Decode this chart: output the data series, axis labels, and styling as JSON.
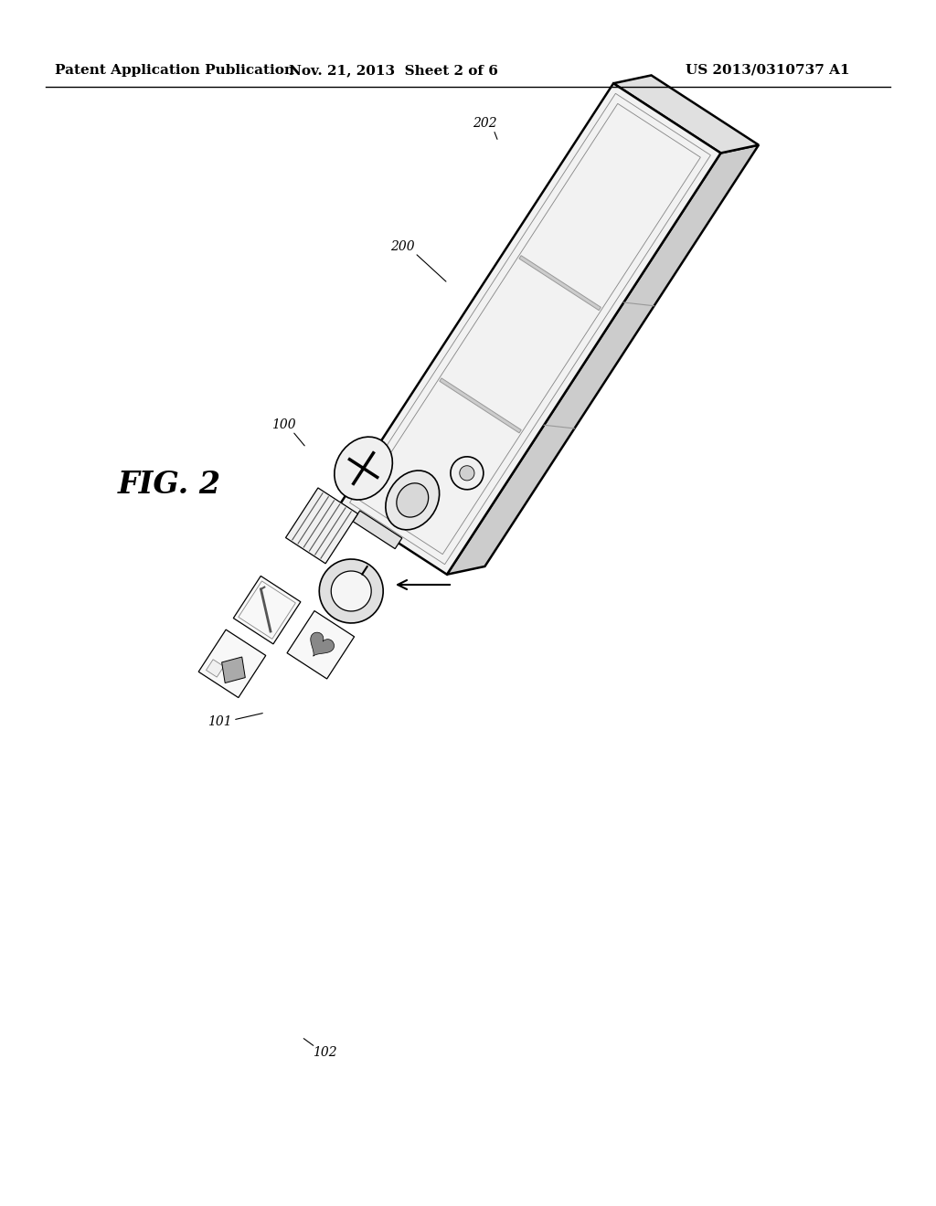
{
  "background_color": "#ffffff",
  "header_left": "Patent Application Publication",
  "header_center": "Nov. 21, 2013  Sheet 2 of 6",
  "header_right": "US 2013/0310737 A1",
  "header_fontsize": 11,
  "fig_label": "FIG. 2",
  "fig_label_fontsize": 24
}
